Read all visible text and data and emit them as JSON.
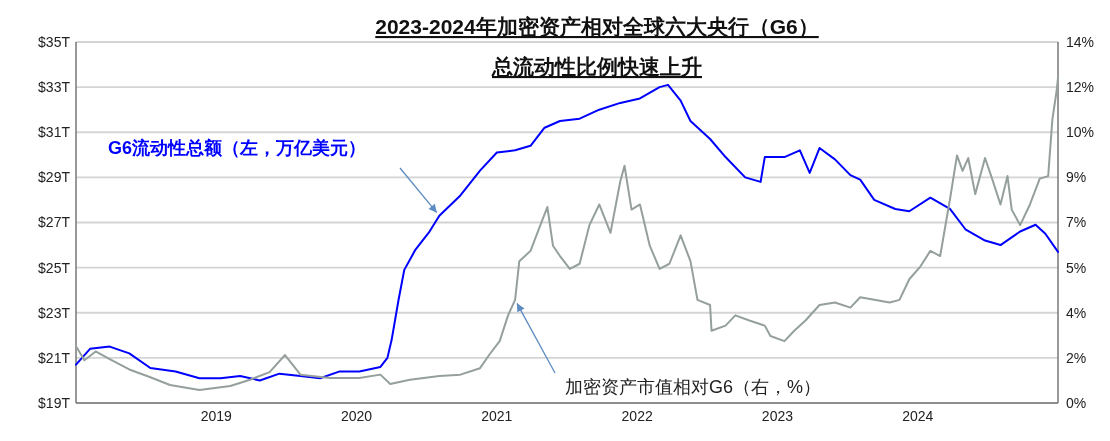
{
  "chart_data": {
    "type": "line",
    "title": "2023-2024年加密资产相对全球六大央行（G6）",
    "subtitle": "总流动性比例快速上升",
    "xlim": [
      2018,
      2025
    ],
    "xticks": [
      2019,
      2020,
      2021,
      2022,
      2023,
      2024
    ],
    "ylim": [
      19,
      35
    ],
    "yticks": [
      {
        "value": 19,
        "label": "$19T"
      },
      {
        "value": 21,
        "label": "$21T"
      },
      {
        "value": 23,
        "label": "$23T"
      },
      {
        "value": 25,
        "label": "$25T"
      },
      {
        "value": 27,
        "label": "$27T"
      },
      {
        "value": 29,
        "label": "$29T"
      },
      {
        "value": 31,
        "label": "$31T"
      },
      {
        "value": 33,
        "label": "$33T"
      },
      {
        "value": 35,
        "label": "$35T"
      }
    ],
    "y2lim": [
      0,
      14
    ],
    "y2ticks": [
      {
        "value": 0,
        "label": "0%"
      },
      {
        "value": 1.75,
        "label": "2%"
      },
      {
        "value": 3.5,
        "label": "4%"
      },
      {
        "value": 5.25,
        "label": "5%"
      },
      {
        "value": 7,
        "label": "7%"
      },
      {
        "value": 8.75,
        "label": "9%"
      },
      {
        "value": 10.5,
        "label": "10%"
      },
      {
        "value": 12.25,
        "label": "12%"
      },
      {
        "value": 14,
        "label": "14%"
      }
    ],
    "grid": "y",
    "legend": false,
    "marker": "none",
    "line_style": "solid",
    "series": [
      {
        "name": "G6流动性总额（左，万亿美元）",
        "color": "#0000ff",
        "x": [
          2018.0,
          2018.1,
          2018.24,
          2018.38,
          2018.53,
          2018.71,
          2018.88,
          2019.03,
          2019.17,
          2019.31,
          2019.45,
          2019.6,
          2019.74,
          2019.88,
          2020.02,
          2020.17,
          2020.22,
          2020.25,
          2020.3,
          2020.34,
          2020.42,
          2020.52,
          2020.59,
          2020.74,
          2020.88,
          2021.0,
          2021.13,
          2021.24,
          2021.34,
          2021.45,
          2021.59,
          2021.73,
          2021.88,
          2022.02,
          2022.16,
          2022.22,
          2022.31,
          2022.38,
          2022.45,
          2022.52,
          2022.63,
          2022.77,
          2022.88,
          2022.91,
          2023.05,
          2023.16,
          2023.23,
          2023.3,
          2023.41,
          2023.52,
          2023.59,
          2023.69,
          2023.84,
          2023.94,
          2024.09,
          2024.23,
          2024.34,
          2024.48,
          2024.59,
          2024.73,
          2024.84,
          2024.91,
          2025.0
        ],
        "values": [
          20.7,
          21.4,
          21.5,
          21.2,
          20.55,
          20.4,
          20.1,
          20.1,
          20.2,
          20.0,
          20.3,
          20.2,
          20.1,
          20.4,
          20.4,
          20.6,
          21.0,
          21.8,
          23.6,
          24.9,
          25.8,
          26.6,
          27.3,
          28.2,
          29.3,
          30.1,
          30.2,
          30.4,
          31.2,
          31.5,
          31.6,
          32.0,
          32.3,
          32.5,
          33.0,
          33.1,
          32.4,
          31.5,
          31.1,
          30.7,
          29.9,
          29.0,
          28.8,
          29.9,
          29.9,
          30.2,
          29.2,
          30.3,
          29.8,
          29.1,
          28.9,
          28.0,
          27.6,
          27.5,
          28.1,
          27.6,
          26.7,
          26.2,
          26.0,
          26.6,
          26.9,
          26.5,
          25.7
        ]
      },
      {
        "name": "加密资产市值相对G6（右，%）",
        "color": "#95a09c",
        "axis": "y2",
        "x": [
          2018.0,
          2018.06,
          2018.14,
          2018.24,
          2018.38,
          2018.53,
          2018.67,
          2018.88,
          2019.1,
          2019.24,
          2019.38,
          2019.49,
          2019.6,
          2019.81,
          2020.02,
          2020.17,
          2020.24,
          2020.38,
          2020.59,
          2020.74,
          2020.88,
          2020.95,
          2021.02,
          2021.08,
          2021.13,
          2021.16,
          2021.24,
          2021.31,
          2021.36,
          2021.4,
          2021.45,
          2021.52,
          2021.59,
          2021.66,
          2021.73,
          2021.81,
          2021.88,
          2021.91,
          2021.96,
          2022.02,
          2022.09,
          2022.16,
          2022.23,
          2022.31,
          2022.38,
          2022.43,
          2022.52,
          2022.53,
          2022.63,
          2022.7,
          2022.8,
          2022.91,
          2022.95,
          2023.05,
          2023.12,
          2023.2,
          2023.3,
          2023.41,
          2023.52,
          2023.59,
          2023.69,
          2023.8,
          2023.87,
          2023.94,
          2024.02,
          2024.09,
          2024.16,
          2024.23,
          2024.28,
          2024.32,
          2024.36,
          2024.41,
          2024.48,
          2024.53,
          2024.59,
          2024.64,
          2024.67,
          2024.73,
          2024.8,
          2024.87,
          2024.93,
          2024.96,
          2024.99,
          2025.0
        ],
        "values": [
          2.2,
          1.66,
          2.0,
          1.7,
          1.3,
          1.0,
          0.7,
          0.5,
          0.66,
          0.9,
          1.2,
          1.86,
          1.1,
          0.97,
          0.97,
          1.1,
          0.74,
          0.9,
          1.05,
          1.1,
          1.35,
          1.9,
          2.4,
          3.4,
          4.0,
          5.5,
          5.9,
          6.9,
          7.6,
          6.1,
          5.7,
          5.2,
          5.4,
          6.9,
          7.7,
          6.6,
          8.6,
          9.2,
          7.5,
          7.7,
          6.1,
          5.2,
          5.4,
          6.5,
          5.5,
          4.0,
          3.8,
          2.8,
          3.0,
          3.4,
          3.2,
          3.0,
          2.6,
          2.4,
          2.8,
          3.2,
          3.8,
          3.9,
          3.7,
          4.1,
          4.0,
          3.9,
          4.0,
          4.8,
          5.3,
          5.9,
          5.7,
          7.9,
          9.6,
          9.0,
          9.5,
          8.1,
          9.5,
          8.7,
          7.7,
          8.8,
          7.5,
          6.9,
          7.7,
          8.7,
          8.8,
          11.0,
          12.1,
          12.6
        ]
      }
    ]
  }
}
